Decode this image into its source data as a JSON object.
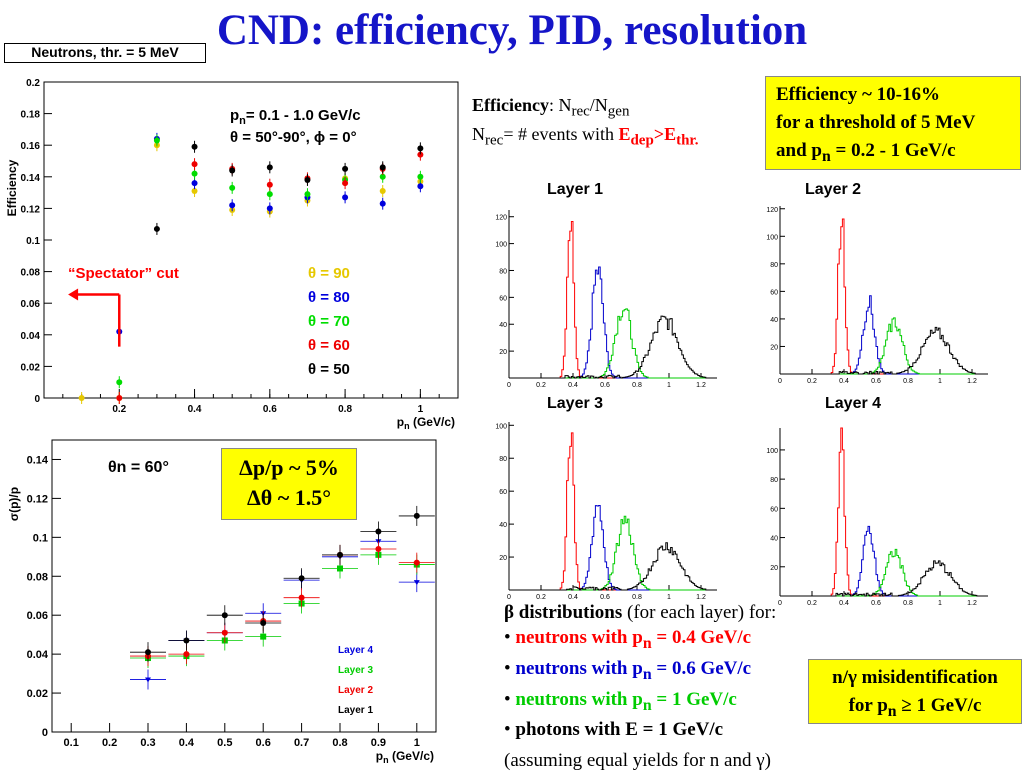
{
  "slide": {
    "title": "CND: efficiency, PID, resolution",
    "badge": "Neutrons, thr. = 5 MeV",
    "eff_note": [
      "Efficiency ~ 10-16%",
      "for a threshold of 5 MeV",
      "and p",
      "n",
      " = 0.2 - 1 GeV/c"
    ],
    "eff_def": {
      "label": "Efficiency",
      "colon": ": N",
      "rec": "rec",
      "slash": "/N",
      "gen": "gen",
      "line2a": "N",
      "line2b": "= # events with ",
      "edep": "E",
      "dep": "dep",
      "gt": ">E",
      "thr": "thr."
    },
    "beta": {
      "heading": "β distributions",
      "heading_rest": " (for each layer) for:",
      "items": [
        {
          "pre": "neutrons with p",
          "sub": "n",
          "post": " = 0.4 GeV/c",
          "color": "#ff0000"
        },
        {
          "pre": "neutrons with p",
          "sub": "n",
          "post": " = 0.6 GeV/c",
          "color": "#0000cc"
        },
        {
          "pre": "neutrons with p",
          "sub": "n",
          "post": " = 1 GeV/c",
          "color": "#00cc00"
        },
        {
          "pre": "photons with E = 1 GeV/c",
          "sub": "",
          "post": "",
          "color": "#000000"
        }
      ],
      "note": "(assuming equal yields for n and γ)",
      "bullet": "•"
    },
    "misid": [
      "n/γ misidentification",
      "for p",
      "n",
      " ≥ 1 GeV/c"
    ],
    "res_box": [
      "Δp/p ~ 5%",
      "Δθ ~ 1.5°"
    ]
  },
  "chart_data": [
    {
      "type": "scatter",
      "title": "",
      "xlabel": "p_n (GeV/c)",
      "ylabel": "Efficiency",
      "xlim": [
        0,
        1.1
      ],
      "ylim": [
        0,
        0.2
      ],
      "xticks": [
        0.2,
        0.4,
        0.6,
        0.8,
        1
      ],
      "yticks": [
        0,
        0.02,
        0.04,
        0.06,
        0.08,
        0.1,
        0.12,
        0.14,
        0.16,
        0.18,
        0.2
      ],
      "annotation": {
        "line1": "p",
        "sub1": "n",
        "rest1": "= 0.1 - 1.0 GeV/c",
        "line2": "θ = 50°-90°, ϕ = 0°"
      },
      "cut_label": "“Spectator” cut",
      "legend_pos": "right",
      "x": [
        0.1,
        0.2,
        0.3,
        0.4,
        0.5,
        0.6,
        0.7,
        0.8,
        0.9,
        1.0
      ],
      "series": [
        {
          "name": "θ = 90",
          "color": "#e6c800",
          "values": [
            0,
            0,
            0.16,
            0.131,
            0.119,
            0.118,
            0.125,
            0.139,
            0.131,
            0.137
          ]
        },
        {
          "name": "θ = 80",
          "color": "#0000dd",
          "values": [
            null,
            0.042,
            0.164,
            0.136,
            0.122,
            0.12,
            0.127,
            0.127,
            0.123,
            0.134
          ]
        },
        {
          "name": "θ = 70",
          "color": "#00dd00",
          "values": [
            null,
            0.01,
            0.163,
            0.142,
            0.133,
            0.129,
            0.129,
            0.138,
            0.14,
            0.14
          ]
        },
        {
          "name": "θ = 60",
          "color": "#ee0000",
          "values": [
            null,
            0,
            null,
            0.148,
            0.145,
            0.135,
            0.139,
            0.136,
            0.145,
            0.154
          ]
        },
        {
          "name": "θ = 50",
          "color": "#000000",
          "values": [
            null,
            null,
            0.107,
            0.159,
            0.144,
            0.146,
            0.138,
            0.145,
            0.146,
            0.158
          ]
        }
      ]
    },
    {
      "type": "scatter",
      "title": "",
      "xlabel": "p_n (GeV/c)",
      "ylabel": "σ(p)/p",
      "xlim": [
        0.05,
        1.05
      ],
      "ylim": [
        0,
        0.15
      ],
      "xticks": [
        0.1,
        0.2,
        0.3,
        0.4,
        0.5,
        0.6,
        0.7,
        0.8,
        0.9,
        1
      ],
      "yticks": [
        0,
        0.02,
        0.04,
        0.06,
        0.08,
        0.1,
        0.12,
        0.14
      ],
      "annotation": "θn = 60°",
      "legend_pos": "bottom-right",
      "x": [
        0.3,
        0.4,
        0.5,
        0.6,
        0.7,
        0.8,
        0.9,
        1.0
      ],
      "series": [
        {
          "name": "Layer 4",
          "color": "#0000dd",
          "values": [
            0.027,
            0.047,
            0.051,
            0.061,
            0.078,
            0.09,
            0.098,
            0.077
          ]
        },
        {
          "name": "Layer 3",
          "color": "#00cc00",
          "values": [
            0.038,
            0.039,
            0.047,
            0.049,
            0.066,
            0.084,
            0.091,
            0.086
          ]
        },
        {
          "name": "Layer 2",
          "color": "#ee0000",
          "values": [
            0.039,
            0.04,
            0.051,
            0.057,
            0.069,
            0.091,
            0.094,
            0.087
          ]
        },
        {
          "name": "Layer 1",
          "color": "#000000",
          "values": [
            0.041,
            0.047,
            0.06,
            0.056,
            0.079,
            0.091,
            0.103,
            0.111
          ]
        }
      ]
    },
    {
      "type": "histogram",
      "panels": [
        {
          "title": "Layer 1",
          "ylim": [
            0,
            125
          ],
          "yticks": [
            20,
            40,
            60,
            80,
            100,
            120
          ],
          "peaks": [
            {
              "color": "#ff0000",
              "center": 0.38,
              "height": 122
            },
            {
              "color": "#0000cc",
              "center": 0.55,
              "height": 80
            },
            {
              "color": "#00cc00",
              "center": 0.71,
              "height": 53
            },
            {
              "color": "#000000",
              "center": 0.97,
              "height": 43
            }
          ]
        },
        {
          "title": "Layer 2",
          "ylim": [
            0,
            122
          ],
          "yticks": [
            20,
            40,
            60,
            80,
            100,
            120
          ],
          "peaks": [
            {
              "color": "#ff0000",
              "center": 0.38,
              "height": 117
            },
            {
              "color": "#0000cc",
              "center": 0.55,
              "height": 52
            },
            {
              "color": "#00cc00",
              "center": 0.71,
              "height": 38
            },
            {
              "color": "#000000",
              "center": 0.97,
              "height": 30
            }
          ]
        },
        {
          "title": "Layer 3",
          "ylim": [
            0,
            102
          ],
          "yticks": [
            20,
            40,
            60,
            80,
            100
          ],
          "peaks": [
            {
              "color": "#ff0000",
              "center": 0.38,
              "height": 100
            },
            {
              "color": "#0000cc",
              "center": 0.55,
              "height": 53
            },
            {
              "color": "#00cc00",
              "center": 0.72,
              "height": 43
            },
            {
              "color": "#000000",
              "center": 0.98,
              "height": 27
            }
          ]
        },
        {
          "title": "Layer 4",
          "ylim": [
            0,
            115
          ],
          "yticks": [
            20,
            40,
            60,
            80,
            100
          ],
          "peaks": [
            {
              "color": "#ff0000",
              "center": 0.38,
              "height": 105
            },
            {
              "color": "#0000cc",
              "center": 0.55,
              "height": 44
            },
            {
              "color": "#00cc00",
              "center": 0.71,
              "height": 30
            },
            {
              "color": "#000000",
              "center": 0.98,
              "height": 22
            }
          ]
        }
      ],
      "xlim": [
        0,
        1.3
      ],
      "xticks": [
        0,
        0.2,
        0.4,
        0.6,
        0.8,
        1,
        1.2
      ]
    }
  ]
}
